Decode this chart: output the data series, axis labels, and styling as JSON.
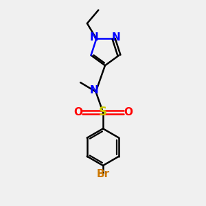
{
  "background_color": "#f0f0f0",
  "bond_color": "#000000",
  "N_color": "#0000ff",
  "O_color": "#ff0000",
  "S_color": "#cccc00",
  "Br_color": "#cc7700",
  "bond_width": 1.8,
  "figsize": [
    3.0,
    3.0
  ],
  "dpi": 100,
  "xlim": [
    0,
    10
  ],
  "ylim": [
    0,
    10
  ]
}
